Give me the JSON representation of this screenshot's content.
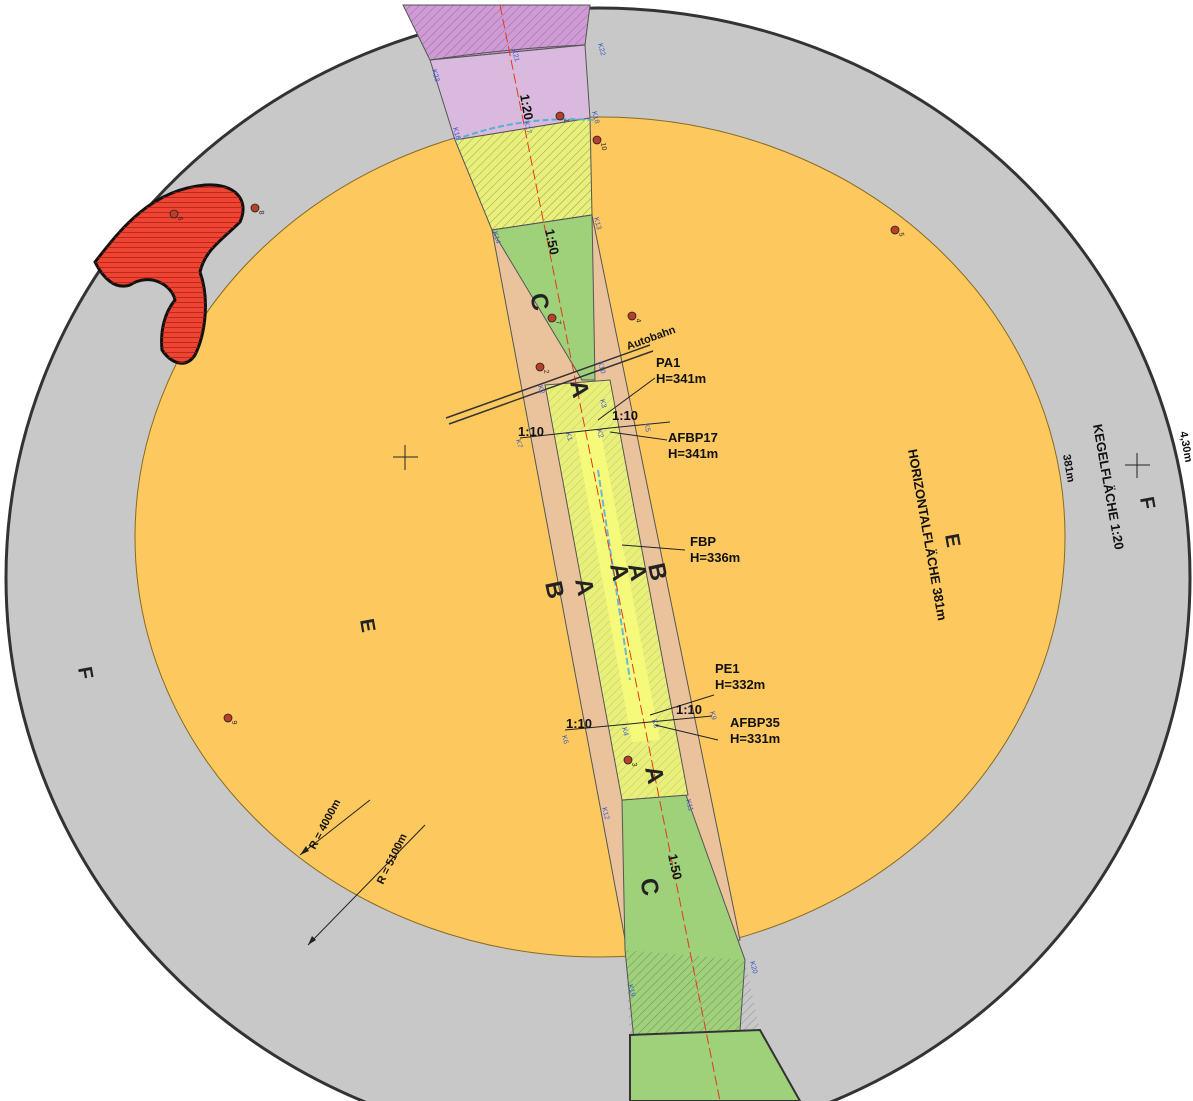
{
  "colors": {
    "outer_ring": "#c8c8c8",
    "horizontal_surface": "#fdc95e",
    "transition": "#eac39d",
    "approach": "#9fd07a",
    "runway_strip": "#e9f07a",
    "approach_far": "#d9b9dd",
    "approach_far_dark": "#d09ad6",
    "obstacle": "#ee4433",
    "centerline": "#e23a1c",
    "markers": "#b8402a"
  },
  "labels": {
    "ratio_120": "1:20",
    "ratio_150_top": "1:50",
    "ratio_150_bottom": "1:50",
    "ratio_110_left_top": "1:10",
    "ratio_110_right_top": "1:10",
    "ratio_110_left_bottom": "1:10",
    "ratio_110_right_bottom": "1:10",
    "autobahn": "Autobahn",
    "pa1_name": "PA1",
    "pa1_height": "H=341m",
    "afbp17_name": "AFBP17",
    "afbp17_height": "H=341m",
    "fbp_name": "FBP",
    "fbp_height": "H=336m",
    "pe1_name": "PE1",
    "pe1_height": "H=332m",
    "afbp35_name": "AFBP35",
    "afbp35_height": "H=331m",
    "horizontal_surface": "HORIZONTALFLÄCHE 381m",
    "ring_height": "381m",
    "conical_surface": "KEGELFLÄCHE 1:20",
    "edge_cut": "4,30m",
    "radius_inner": "R = 4000m",
    "radius_outer": "R = 5100m"
  },
  "zones": {
    "E_left": "E",
    "E_right": "E",
    "F_left": "F",
    "F_right": "F",
    "A_top": "A",
    "A_mid1": "A",
    "A_mid2": "A",
    "A_mid3": "A",
    "A_bottom": "A",
    "B_left": "B",
    "B_right": "B",
    "C_top": "C",
    "C_bottom": "C"
  },
  "markers": [
    {
      "id": "marker-1",
      "label": "1"
    },
    {
      "id": "marker-2",
      "label": "2"
    },
    {
      "id": "marker-3",
      "label": "3"
    },
    {
      "id": "marker-4",
      "label": "4"
    },
    {
      "id": "marker-5",
      "label": "5"
    },
    {
      "id": "marker-6",
      "label": "6"
    },
    {
      "id": "marker-7",
      "label": "7"
    },
    {
      "id": "marker-8",
      "label": "8"
    },
    {
      "id": "marker-9",
      "label": "9"
    },
    {
      "id": "marker-10",
      "label": "10"
    }
  ],
  "point_codes": {
    "k21": "K21",
    "k22": "K22",
    "k23": "K23",
    "k16": "K16",
    "k17": "K17",
    "k18": "K18",
    "k14": "K14",
    "k13": "K13",
    "k10": "K10",
    "k2a": "K2",
    "k3a": "K3",
    "k7": "K7",
    "k1": "K1",
    "k2": "K2",
    "k5": "K5",
    "k6": "K6",
    "k4": "K4",
    "k8": "K8",
    "k9": "K9",
    "k11": "K11",
    "k12": "K12",
    "k19": "K19",
    "k20": "K20"
  }
}
